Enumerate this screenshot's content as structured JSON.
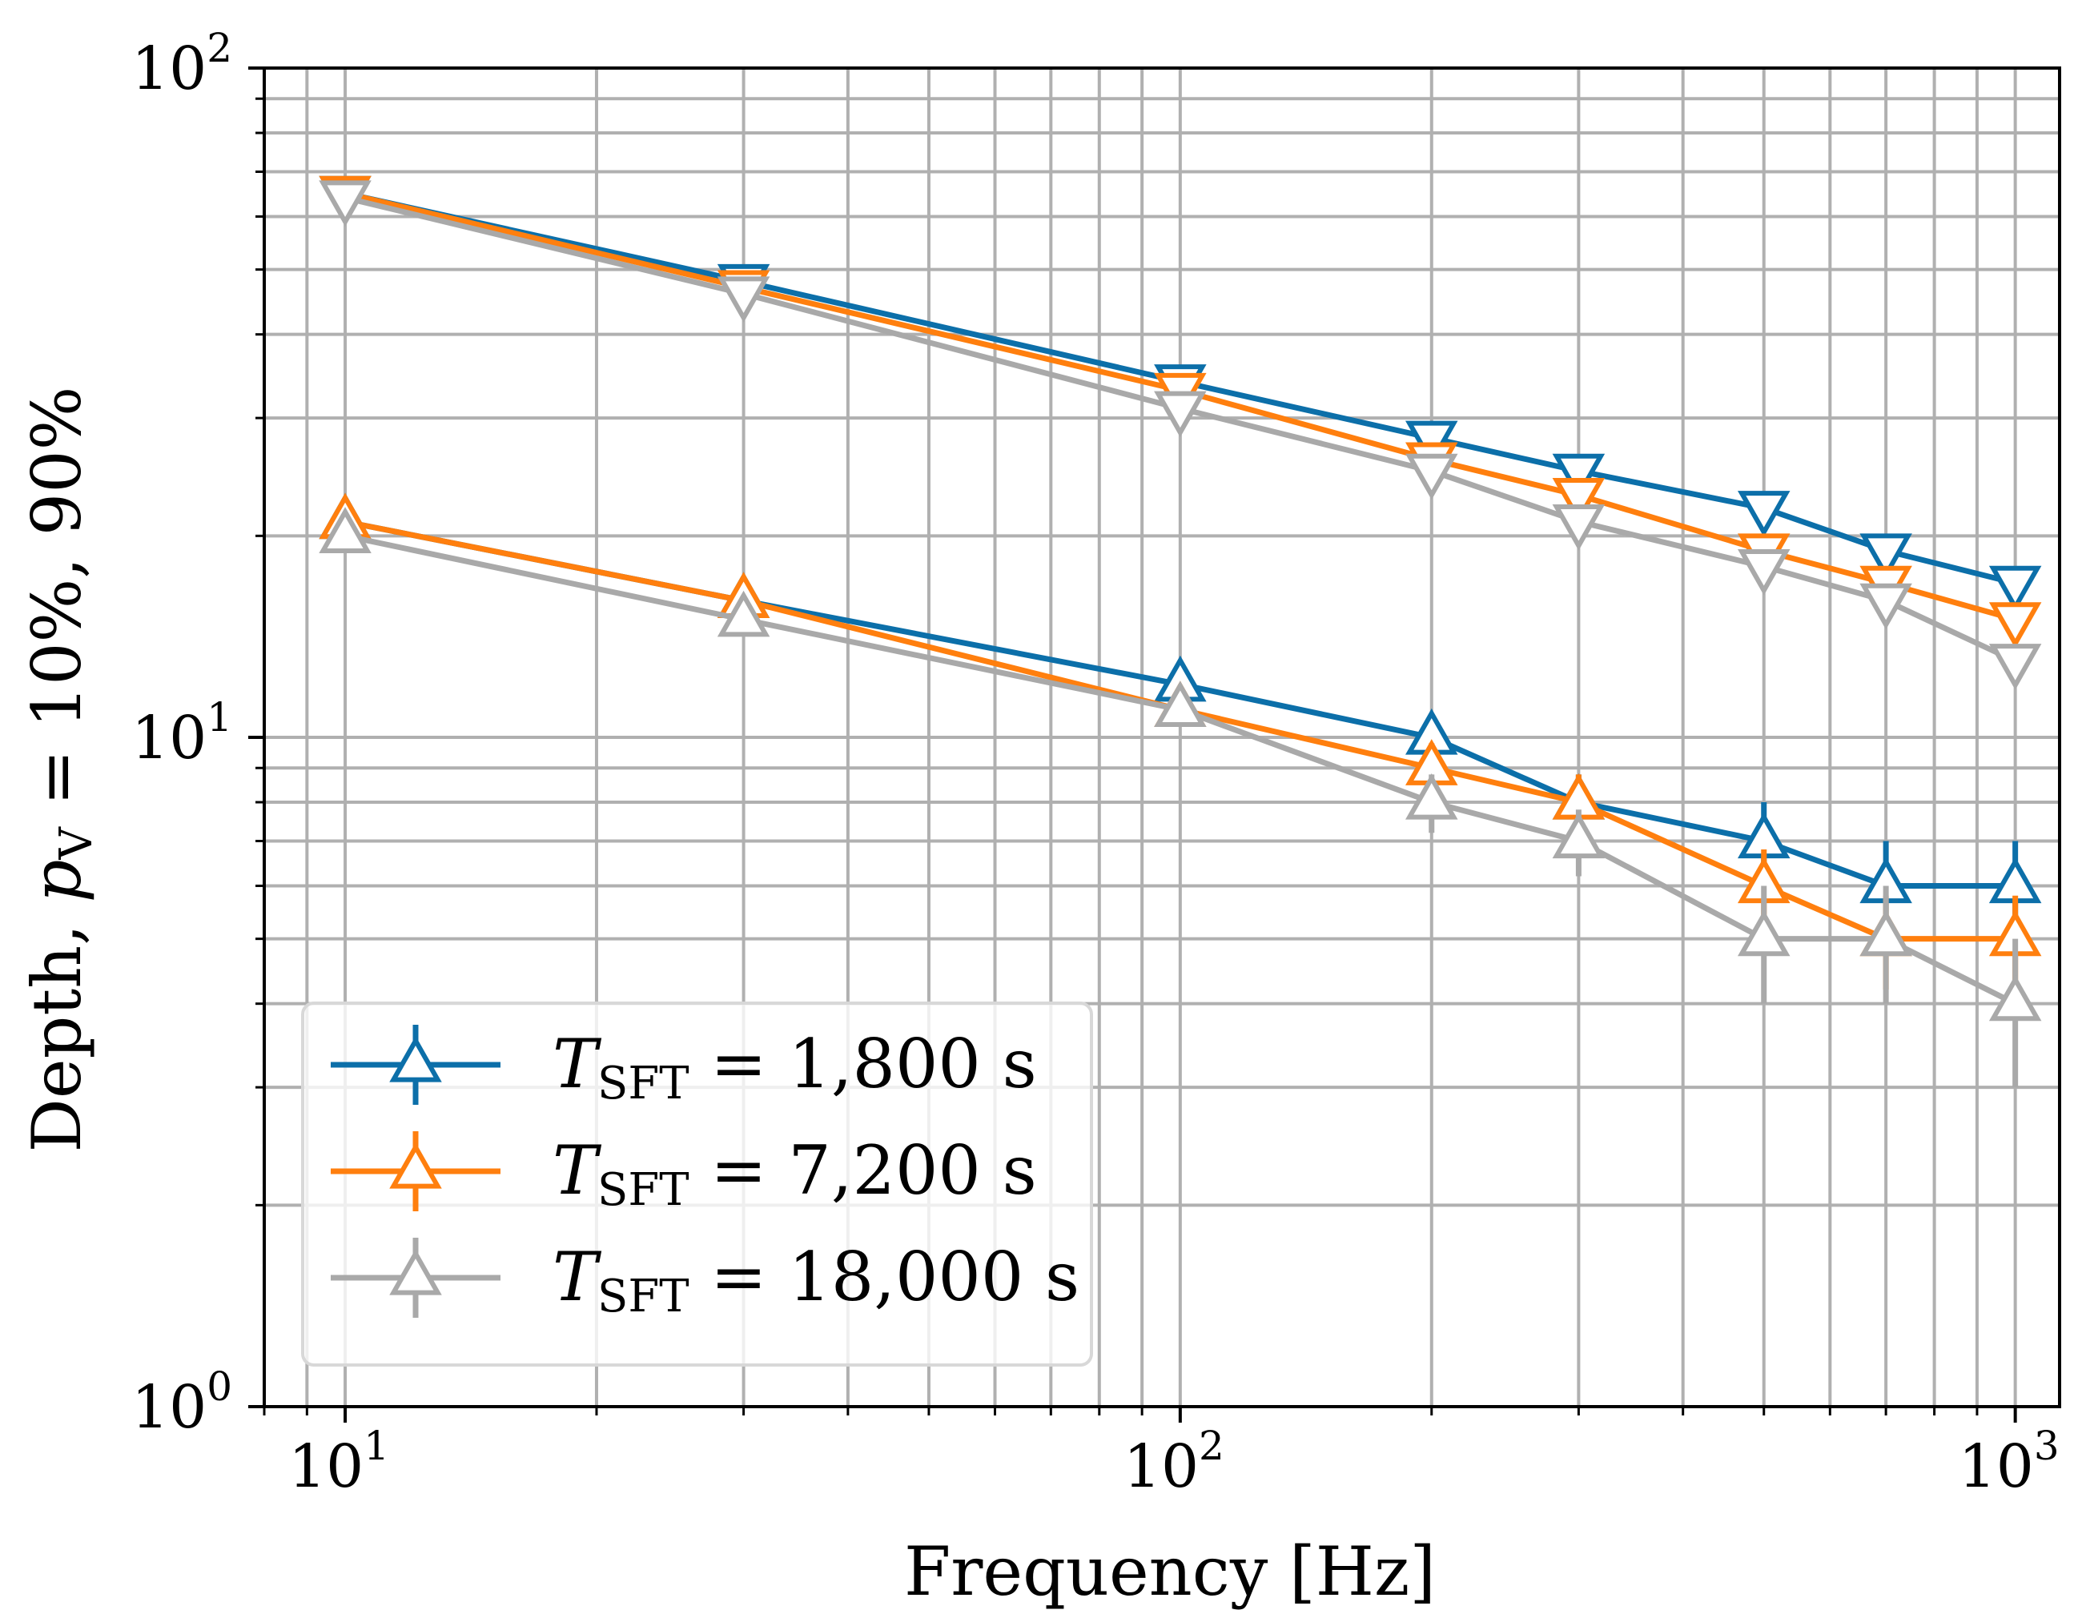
{
  "chart_data": {
    "type": "line",
    "title": "",
    "xscale": "log",
    "yscale": "log",
    "xlim": [
      8,
      1130
    ],
    "ylim": [
      1,
      100
    ],
    "grid": true,
    "legend_position": "lower-left",
    "xlabel": "Frequency [Hz]",
    "ylabel_parts": {
      "prefix": "Depth, ",
      "var": "p",
      "var_sub": "V",
      "suffix": " = 10%, 90%"
    },
    "x_ticks": [
      {
        "value": 10,
        "base": "10",
        "exp": "1"
      },
      {
        "value": 100,
        "base": "10",
        "exp": "2"
      },
      {
        "value": 1000,
        "base": "10",
        "exp": "3"
      }
    ],
    "y_ticks": [
      {
        "value": 1,
        "base": "10",
        "exp": "0"
      },
      {
        "value": 10,
        "base": "10",
        "exp": "1"
      },
      {
        "value": 100,
        "base": "10",
        "exp": "2"
      }
    ],
    "x": [
      10,
      30,
      100,
      200,
      300,
      500,
      700,
      1000
    ],
    "series": [
      {
        "name": "T_SFT = 1,800 s",
        "legend": {
          "var": "T",
          "sub": "SFT",
          "rest": " = 1,800 s"
        },
        "color": "#0c6fa9",
        "p10": [
          21,
          16,
          12,
          10,
          8,
          7,
          6,
          6
        ],
        "p10_err": [
          0.4,
          0.4,
          0.8,
          0.8,
          0.8,
          1.0,
          1.0,
          1.0
        ],
        "p90": [
          65,
          48,
          34,
          28,
          25,
          22,
          19,
          17
        ]
      },
      {
        "name": "T_SFT = 7,200 s",
        "legend": {
          "var": "T",
          "sub": "SFT",
          "rest": " = 7,200 s"
        },
        "color": "#ff7f0e",
        "p10": [
          21,
          16,
          11,
          9,
          8,
          6,
          5,
          5
        ],
        "p10_err": [
          0.4,
          0.4,
          0.4,
          0.8,
          0.8,
          0.8,
          0.8,
          0.8
        ],
        "p90": [
          65,
          47,
          33,
          26,
          23,
          19,
          17,
          15
        ]
      },
      {
        "name": "T_SFT = 18,000 s",
        "legend": {
          "var": "T",
          "sub": "SFT",
          "rest": " = 18,000 s"
        },
        "color": "#a9a9a9",
        "p10": [
          20,
          15,
          11,
          8,
          7,
          5,
          5,
          4
        ],
        "p10_err": [
          0.4,
          0.4,
          0.4,
          0.8,
          0.8,
          1.0,
          1.0,
          1.0
        ],
        "p90": [
          64,
          46,
          31,
          25,
          21,
          18,
          16,
          13
        ]
      }
    ]
  }
}
